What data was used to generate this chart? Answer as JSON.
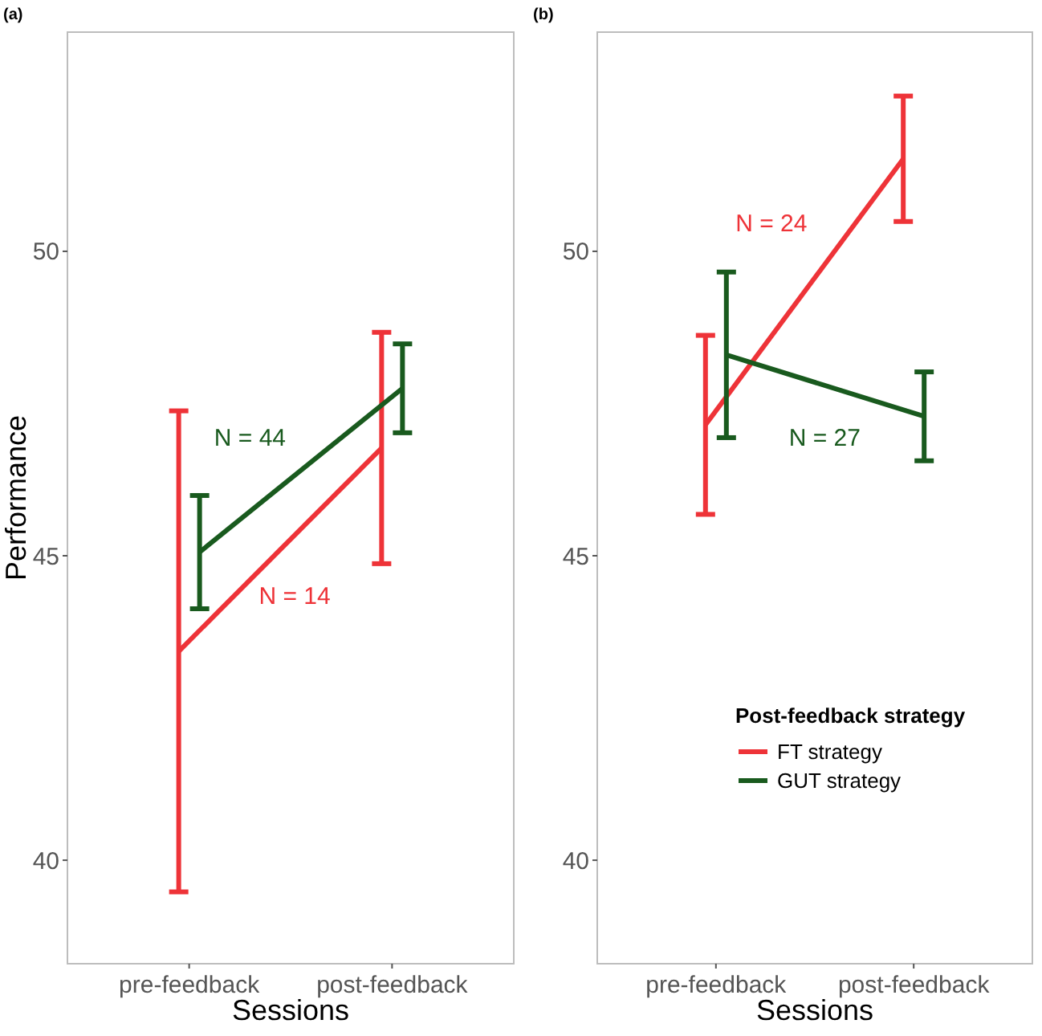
{
  "chart_data": [
    {
      "type": "line",
      "title": "(a)",
      "xlabel": "Sessions",
      "ylabel": "Performance",
      "categories": [
        "pre-feedback",
        "post-feedback"
      ],
      "ylim": [
        38.3,
        53.6
      ],
      "yticks": [
        40,
        45,
        50
      ],
      "grid": false,
      "legend": false,
      "marker": "none",
      "line_style": "solid",
      "series": [
        {
          "color": "#ee3338",
          "values": [
            43.43,
            46.77
          ],
          "errors": [
            3.95,
            1.9
          ]
        },
        {
          "color": "#195a1e",
          "values": [
            45.06,
            47.75
          ],
          "errors": [
            0.93,
            0.73
          ]
        }
      ],
      "annotations": [
        "N = 14",
        "N = 44"
      ]
    },
    {
      "type": "line",
      "title": "(b)",
      "xlabel": "Sessions",
      "categories": [
        "pre-feedback",
        "post-feedback"
      ],
      "ylim": [
        38.3,
        53.6
      ],
      "yticks": [
        40,
        45,
        50
      ],
      "grid": false,
      "legend": "bottom right",
      "legend_title": "Post-feedback strategy",
      "marker": "none",
      "line_style": "solid",
      "series": [
        {
          "name": "FT strategy",
          "color": "#ee3338",
          "values": [
            47.15,
            51.52
          ],
          "errors": [
            1.47,
            1.03
          ]
        },
        {
          "name": "GUT strategy",
          "color": "#195a1e",
          "values": [
            48.3,
            47.29
          ],
          "errors": [
            1.36,
            0.73
          ]
        }
      ],
      "annotations": [
        "N = 24",
        "N = 27"
      ]
    }
  ]
}
